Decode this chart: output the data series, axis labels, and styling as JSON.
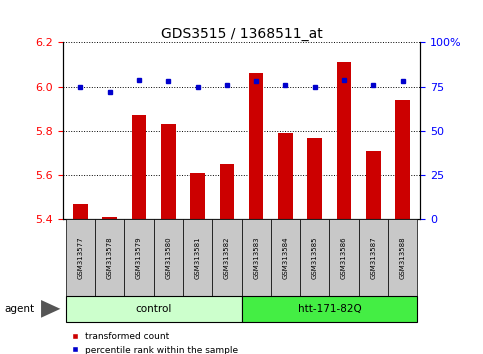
{
  "title": "GDS3515 / 1368511_at",
  "samples": [
    "GSM313577",
    "GSM313578",
    "GSM313579",
    "GSM313580",
    "GSM313581",
    "GSM313582",
    "GSM313583",
    "GSM313584",
    "GSM313585",
    "GSM313586",
    "GSM313587",
    "GSM313588"
  ],
  "red_values": [
    5.47,
    5.41,
    5.87,
    5.83,
    5.61,
    5.65,
    6.06,
    5.79,
    5.77,
    6.11,
    5.71,
    5.94
  ],
  "blue_values": [
    75,
    72,
    79,
    78,
    75,
    76,
    78,
    76,
    75,
    79,
    76,
    78
  ],
  "ylim_left": [
    5.4,
    6.2
  ],
  "ylim_right": [
    0,
    100
  ],
  "yticks_left": [
    5.4,
    5.6,
    5.8,
    6.0,
    6.2
  ],
  "yticks_right": [
    0,
    25,
    50,
    75,
    100
  ],
  "ytick_labels_right": [
    "0",
    "25",
    "50",
    "75",
    "100%"
  ],
  "groups": [
    {
      "label": "control",
      "start": 0,
      "end": 5,
      "color": "#ccffcc"
    },
    {
      "label": "htt-171-82Q",
      "start": 6,
      "end": 11,
      "color": "#44ee44"
    }
  ],
  "bar_color": "#cc0000",
  "dot_color": "#0000cc",
  "sample_box_color": "#c8c8c8",
  "agent_label": "agent",
  "legend_red": "transformed count",
  "legend_blue": "percentile rank within the sample"
}
